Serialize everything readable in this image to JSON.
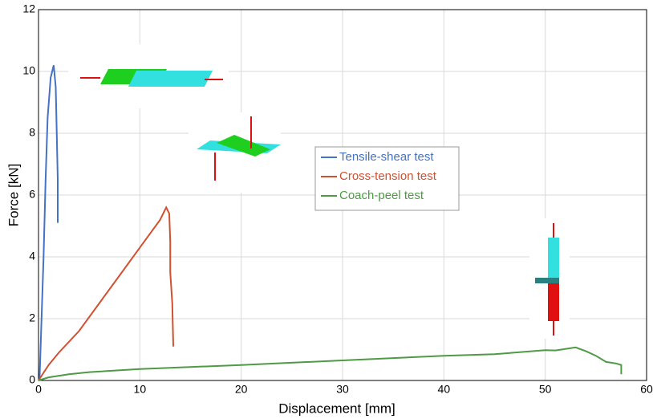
{
  "chart_data": {
    "type": "line",
    "xlabel": "Displacement [mm]",
    "ylabel": "Force [kN]",
    "xlim": [
      0,
      60
    ],
    "ylim": [
      0,
      12
    ],
    "xticks": [
      0,
      10,
      20,
      30,
      40,
      50,
      60
    ],
    "yticks": [
      0,
      2,
      4,
      6,
      8,
      10,
      12
    ],
    "grid": true,
    "legend": "center",
    "series": [
      {
        "name": "Tensile-shear test",
        "color": "#4472c4",
        "x": [
          0.1,
          0.3,
          0.5,
          0.7,
          0.9,
          1.2,
          1.5,
          1.7,
          1.8,
          1.9,
          1.9
        ],
        "values": [
          0,
          2,
          4,
          6.5,
          8.5,
          9.8,
          10.2,
          9.5,
          8,
          6.5,
          5.1
        ]
      },
      {
        "name": "Cross-tension test",
        "color": "#d0502f",
        "x": [
          0,
          1,
          2,
          4,
          6,
          8,
          10,
          12,
          12.6,
          12.9,
          13,
          13,
          13.2,
          13.3
        ],
        "values": [
          0,
          0.5,
          0.9,
          1.6,
          2.5,
          3.4,
          4.3,
          5.2,
          5.6,
          5.4,
          4.5,
          3.5,
          2.5,
          1.1
        ]
      },
      {
        "name": "Coach-peel test",
        "color": "#4e9a45",
        "x": [
          0,
          1,
          3,
          5,
          10,
          20,
          30,
          40,
          45,
          50,
          51,
          53,
          54,
          55,
          56,
          57,
          57.5,
          57.5
        ],
        "values": [
          0,
          0.1,
          0.2,
          0.27,
          0.37,
          0.5,
          0.65,
          0.8,
          0.85,
          0.98,
          0.97,
          1.07,
          0.95,
          0.8,
          0.6,
          0.55,
          0.5,
          0.2
        ]
      }
    ]
  }
}
